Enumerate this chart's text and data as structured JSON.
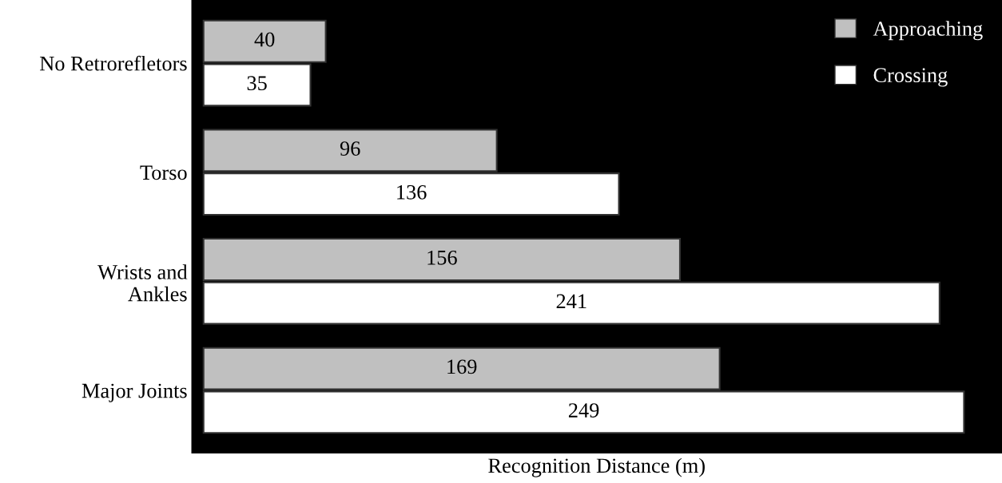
{
  "chart_data": {
    "type": "bar",
    "orientation": "horizontal",
    "xlabel": "Recognition Distance (m)",
    "categories": [
      "No Retrorefletors",
      "Torso",
      "Wrists and\nAnkles",
      "Major Joints"
    ],
    "series": [
      {
        "name": "Approaching",
        "color": "#c0c0c0",
        "values": [
          40,
          96,
          156,
          169
        ]
      },
      {
        "name": "Crossing",
        "color": "#ffffff",
        "values": [
          35,
          136,
          241,
          249
        ]
      }
    ],
    "data_labels": true,
    "legend": "top right",
    "grid": false,
    "tick_labels": "y"
  }
}
